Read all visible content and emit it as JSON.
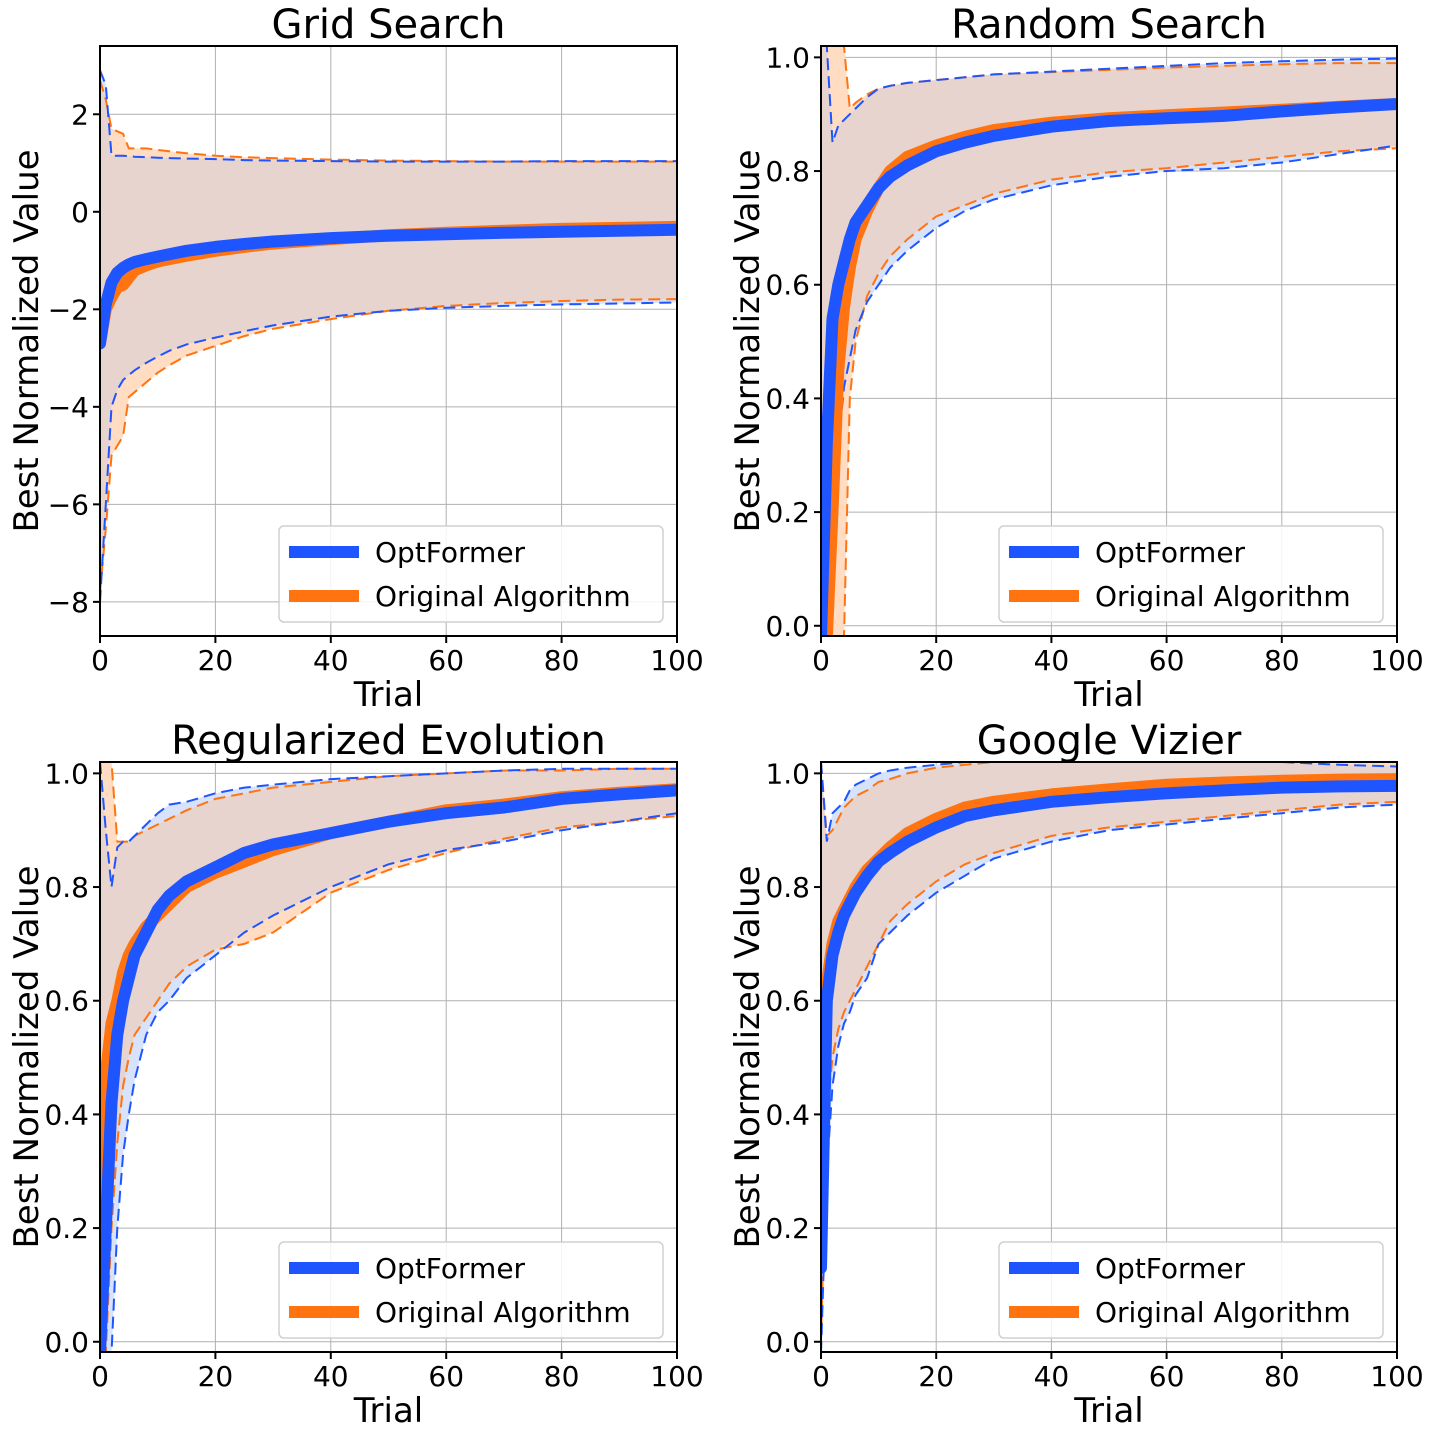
{
  "colors": {
    "optformer": "#1f55ff",
    "original": "#ff7410",
    "optformer_band": "#d7e2fb",
    "original_band": "#ffdcc2",
    "overlap_band": "#e8d4cf",
    "grid": "#b0b0b0"
  },
  "chart_data": [
    {
      "type": "line",
      "title": "Grid Search",
      "xlabel": "Trial",
      "ylabel": "Best Normalized Value",
      "xlim": [
        0,
        100
      ],
      "ylim": [
        -8.7,
        3.4
      ],
      "xticks": [
        0,
        20,
        40,
        60,
        80,
        100
      ],
      "xtick_labels": [
        "0",
        "20",
        "40",
        "60",
        "80",
        "100"
      ],
      "yticks": [
        -8,
        -6,
        -4,
        -2,
        0,
        2
      ],
      "ytick_labels": [
        "−8",
        "−6",
        "−4",
        "−2",
        "0",
        "2"
      ],
      "grid": true,
      "legend_position": "lower right",
      "x": [
        0,
        1,
        2,
        3,
        4,
        5,
        6,
        8,
        10,
        12,
        15,
        20,
        25,
        30,
        40,
        50,
        60,
        70,
        80,
        90,
        100
      ],
      "series": [
        {
          "name": "OptFormer",
          "mean": [
            -2.7,
            -1.9,
            -1.45,
            -1.25,
            -1.15,
            -1.08,
            -1.03,
            -0.97,
            -0.92,
            -0.87,
            -0.8,
            -0.72,
            -0.66,
            -0.61,
            -0.54,
            -0.49,
            -0.46,
            -0.43,
            -0.41,
            -0.39,
            -0.37
          ],
          "upper": [
            2.9,
            2.6,
            1.15,
            1.15,
            1.15,
            1.14,
            1.13,
            1.12,
            1.11,
            1.1,
            1.09,
            1.08,
            1.06,
            1.05,
            1.04,
            1.03,
            1.03,
            1.03,
            1.04,
            1.04,
            1.04
          ],
          "lower": [
            -8.0,
            -6.0,
            -4.0,
            -3.65,
            -3.45,
            -3.35,
            -3.25,
            -3.1,
            -2.97,
            -2.85,
            -2.72,
            -2.58,
            -2.45,
            -2.33,
            -2.15,
            -2.03,
            -1.97,
            -1.93,
            -1.9,
            -1.88,
            -1.86
          ]
        },
        {
          "name": "Original Algorithm",
          "mean": [
            -2.7,
            -2.0,
            -1.75,
            -1.55,
            -1.5,
            -1.35,
            -1.2,
            -1.1,
            -1.02,
            -0.97,
            -0.9,
            -0.8,
            -0.72,
            -0.65,
            -0.56,
            -0.48,
            -0.43,
            -0.39,
            -0.35,
            -0.33,
            -0.31
          ],
          "upper": [
            2.7,
            2.3,
            1.7,
            1.65,
            1.6,
            1.3,
            1.3,
            1.3,
            1.27,
            1.24,
            1.2,
            1.15,
            1.12,
            1.1,
            1.07,
            1.05,
            1.04,
            1.03,
            1.03,
            1.03,
            1.03
          ],
          "lower": [
            -7.8,
            -6.5,
            -5.0,
            -4.8,
            -4.6,
            -3.8,
            -3.7,
            -3.5,
            -3.3,
            -3.15,
            -2.95,
            -2.75,
            -2.55,
            -2.4,
            -2.2,
            -2.03,
            -1.93,
            -1.87,
            -1.83,
            -1.8,
            -1.79
          ]
        }
      ]
    },
    {
      "type": "line",
      "title": "Random Search",
      "xlabel": "Trial",
      "ylabel": "Best Normalized Value",
      "xlim": [
        0,
        100
      ],
      "ylim": [
        -0.018,
        1.02
      ],
      "xticks": [
        0,
        20,
        40,
        60,
        80,
        100
      ],
      "xtick_labels": [
        "0",
        "20",
        "40",
        "60",
        "80",
        "100"
      ],
      "yticks": [
        0.0,
        0.2,
        0.4,
        0.6,
        0.8,
        1.0
      ],
      "ytick_labels": [
        "0.0",
        "0.2",
        "0.4",
        "0.6",
        "0.8",
        "1.0"
      ],
      "grid": true,
      "legend_position": "lower right",
      "x": [
        0,
        1,
        2,
        3,
        4,
        5,
        6,
        8,
        10,
        12,
        15,
        20,
        25,
        30,
        40,
        50,
        60,
        70,
        80,
        90,
        100
      ],
      "series": [
        {
          "name": "OptFormer",
          "mean": [
            -0.02,
            0.32,
            0.54,
            0.6,
            0.64,
            0.68,
            0.71,
            0.74,
            0.77,
            0.79,
            0.81,
            0.835,
            0.85,
            0.862,
            0.878,
            0.888,
            0.893,
            0.897,
            0.905,
            0.912,
            0.918
          ],
          "upper": [
            1.02,
            1.02,
            0.85,
            0.88,
            0.89,
            0.9,
            0.91,
            0.93,
            0.945,
            0.95,
            0.955,
            0.96,
            0.965,
            0.97,
            0.975,
            0.98,
            0.985,
            0.99,
            0.993,
            0.996,
            0.998
          ],
          "lower": [
            -0.02,
            -0.02,
            0.15,
            0.32,
            0.42,
            0.47,
            0.52,
            0.57,
            0.6,
            0.63,
            0.66,
            0.7,
            0.73,
            0.75,
            0.775,
            0.79,
            0.8,
            0.805,
            0.815,
            0.83,
            0.845
          ]
        },
        {
          "name": "Original Algorithm",
          "mean": [
            -0.02,
            -0.02,
            0.2,
            0.45,
            0.56,
            0.63,
            0.68,
            0.73,
            0.77,
            0.8,
            0.825,
            0.845,
            0.86,
            0.872,
            0.885,
            0.893,
            0.898,
            0.903,
            0.908,
            0.913,
            0.918
          ],
          "upper": [
            1.02,
            1.02,
            1.02,
            1.02,
            1.02,
            0.91,
            0.92,
            0.935,
            0.945,
            0.95,
            0.955,
            0.96,
            0.965,
            0.97,
            0.974,
            0.978,
            0.982,
            0.985,
            0.988,
            0.99,
            0.99
          ],
          "lower": [
            -0.02,
            -0.02,
            -0.02,
            -0.02,
            -0.02,
            0.4,
            0.5,
            0.58,
            0.62,
            0.65,
            0.68,
            0.72,
            0.74,
            0.76,
            0.785,
            0.798,
            0.805,
            0.815,
            0.825,
            0.835,
            0.84
          ]
        }
      ]
    },
    {
      "type": "line",
      "title": "Regularized Evolution",
      "xlabel": "Trial",
      "ylabel": "Best Normalized Value",
      "xlim": [
        0,
        100
      ],
      "ylim": [
        -0.018,
        1.02
      ],
      "xticks": [
        0,
        20,
        40,
        60,
        80,
        100
      ],
      "xtick_labels": [
        "0",
        "20",
        "40",
        "60",
        "80",
        "100"
      ],
      "yticks": [
        0.0,
        0.2,
        0.4,
        0.6,
        0.8,
        1.0
      ],
      "ytick_labels": [
        "0.0",
        "0.2",
        "0.4",
        "0.6",
        "0.8",
        "1.0"
      ],
      "grid": true,
      "legend_position": "lower right",
      "x": [
        0,
        1,
        2,
        3,
        4,
        5,
        6,
        8,
        10,
        12,
        15,
        20,
        25,
        30,
        40,
        50,
        60,
        70,
        80,
        90,
        100
      ],
      "series": [
        {
          "name": "OptFormer",
          "mean": [
            -0.02,
            0.2,
            0.42,
            0.54,
            0.6,
            0.64,
            0.68,
            0.72,
            0.76,
            0.785,
            0.81,
            0.835,
            0.86,
            0.875,
            0.895,
            0.915,
            0.93,
            0.94,
            0.955,
            0.963,
            0.97
          ],
          "upper": [
            1.02,
            0.9,
            0.8,
            0.87,
            0.88,
            0.88,
            0.89,
            0.91,
            0.93,
            0.945,
            0.95,
            0.965,
            0.975,
            0.98,
            0.99,
            0.995,
            1.0,
            1.005,
            1.008,
            1.008,
            1.008
          ],
          "lower": [
            -0.02,
            -0.02,
            -0.02,
            0.2,
            0.33,
            0.4,
            0.46,
            0.54,
            0.58,
            0.6,
            0.64,
            0.68,
            0.72,
            0.75,
            0.8,
            0.84,
            0.865,
            0.88,
            0.9,
            0.915,
            0.93
          ]
        },
        {
          "name": "Original Algorithm",
          "mean": [
            -0.02,
            0.47,
            0.56,
            0.6,
            0.65,
            0.68,
            0.7,
            0.73,
            0.75,
            0.77,
            0.8,
            0.825,
            0.845,
            0.865,
            0.895,
            0.915,
            0.935,
            0.945,
            0.958,
            0.966,
            0.972
          ],
          "upper": [
            1.02,
            1.02,
            1.02,
            0.88,
            0.88,
            0.88,
            0.89,
            0.9,
            0.91,
            0.92,
            0.935,
            0.955,
            0.965,
            0.975,
            0.985,
            0.995,
            1.0,
            1.005,
            1.005,
            1.008,
            1.008
          ],
          "lower": [
            -0.02,
            -0.02,
            0.2,
            0.35,
            0.45,
            0.5,
            0.54,
            0.57,
            0.6,
            0.63,
            0.66,
            0.69,
            0.7,
            0.72,
            0.79,
            0.83,
            0.86,
            0.885,
            0.905,
            0.915,
            0.925
          ]
        }
      ]
    },
    {
      "type": "line",
      "title": "Google Vizier",
      "xlabel": "Trial",
      "ylabel": "Best Normalized Value",
      "xlim": [
        0,
        100
      ],
      "ylim": [
        -0.018,
        1.02
      ],
      "xticks": [
        0,
        20,
        40,
        60,
        80,
        100
      ],
      "xtick_labels": [
        "0",
        "20",
        "40",
        "60",
        "80",
        "100"
      ],
      "yticks": [
        0.0,
        0.2,
        0.4,
        0.6,
        0.8,
        1.0
      ],
      "ytick_labels": [
        "0.0",
        "0.2",
        "0.4",
        "0.6",
        "0.8",
        "1.0"
      ],
      "grid": true,
      "legend_position": "lower right",
      "x": [
        0,
        1,
        2,
        3,
        4,
        5,
        6,
        8,
        10,
        12,
        15,
        20,
        25,
        30,
        40,
        50,
        60,
        70,
        80,
        90,
        100
      ],
      "series": [
        {
          "name": "OptFormer",
          "mean": [
            0.13,
            0.6,
            0.68,
            0.72,
            0.75,
            0.77,
            0.79,
            0.82,
            0.845,
            0.86,
            0.88,
            0.905,
            0.925,
            0.935,
            0.95,
            0.958,
            0.965,
            0.97,
            0.975,
            0.977,
            0.978
          ],
          "upper": [
            1.02,
            0.88,
            0.93,
            0.94,
            0.95,
            0.97,
            0.98,
            0.99,
            1.0,
            1.005,
            1.01,
            1.015,
            1.02,
            1.02,
            1.02,
            1.02,
            1.02,
            1.02,
            1.02,
            1.015,
            1.012
          ],
          "lower": [
            -0.02,
            0.3,
            0.45,
            0.52,
            0.56,
            0.58,
            0.61,
            0.64,
            0.7,
            0.72,
            0.75,
            0.79,
            0.82,
            0.85,
            0.88,
            0.9,
            0.91,
            0.92,
            0.93,
            0.94,
            0.945
          ]
        },
        {
          "name": "Original Algorithm",
          "mean": [
            0.2,
            0.63,
            0.7,
            0.74,
            0.76,
            0.78,
            0.8,
            0.83,
            0.85,
            0.87,
            0.895,
            0.92,
            0.94,
            0.95,
            0.963,
            0.972,
            0.98,
            0.984,
            0.987,
            0.989,
            0.99
          ],
          "upper": [
            1.02,
            0.89,
            0.9,
            0.92,
            0.94,
            0.95,
            0.96,
            0.97,
            0.985,
            0.99,
            1.0,
            1.01,
            1.015,
            1.02,
            1.02,
            1.02,
            1.02,
            1.02,
            1.02,
            1.02,
            1.02
          ],
          "lower": [
            0.0,
            0.4,
            0.5,
            0.55,
            0.58,
            0.6,
            0.62,
            0.66,
            0.7,
            0.74,
            0.77,
            0.81,
            0.84,
            0.86,
            0.89,
            0.905,
            0.915,
            0.925,
            0.935,
            0.945,
            0.95
          ]
        }
      ]
    }
  ]
}
